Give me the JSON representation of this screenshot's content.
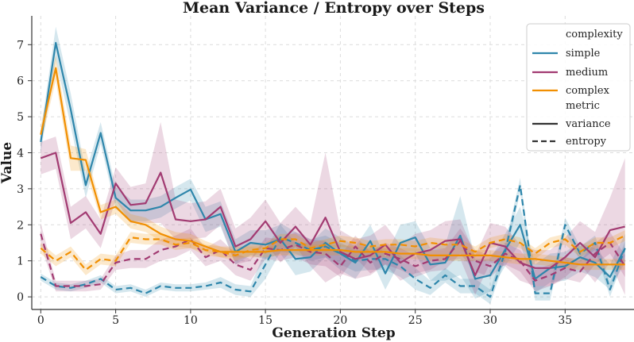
{
  "chart_data": {
    "type": "line",
    "title": "Mean Variance / Entropy over Steps",
    "xlabel": "Generation Step",
    "ylabel": "Value",
    "xlim": [
      -0.6,
      39.6
    ],
    "ylim": [
      -0.35,
      7.8
    ],
    "xticks": [
      0,
      5,
      10,
      15,
      20,
      25,
      30,
      35
    ],
    "yticks": [
      0,
      1,
      2,
      3,
      4,
      5,
      6,
      7
    ],
    "grid": true,
    "legend_position": "top-right",
    "legend": {
      "hue_title": "complexity",
      "style_title": "metric",
      "hue_entries": [
        "simple",
        "medium",
        "complex"
      ],
      "style_entries": [
        "variance",
        "entropy"
      ]
    },
    "x": [
      0,
      1,
      2,
      3,
      4,
      5,
      6,
      7,
      8,
      9,
      10,
      11,
      12,
      13,
      14,
      15,
      16,
      17,
      18,
      19,
      20,
      21,
      22,
      23,
      24,
      25,
      26,
      27,
      28,
      29,
      30,
      31,
      32,
      33,
      34,
      35,
      36,
      37,
      38,
      39
    ],
    "series": [
      {
        "name": "simple",
        "metric": "variance",
        "color": "#2e86ab",
        "style": "solid",
        "values": [
          4.3,
          7.05,
          5.2,
          3.1,
          4.55,
          2.75,
          2.4,
          2.4,
          2.5,
          2.75,
          2.98,
          2.15,
          2.3,
          1.25,
          1.5,
          1.45,
          1.6,
          1.05,
          1.1,
          1.5,
          1.2,
          0.95,
          1.55,
          0.65,
          1.5,
          1.65,
          0.9,
          0.95,
          1.7,
          0.5,
          0.6,
          1.3,
          2.0,
          0.5,
          0.8,
          0.85,
          1.1,
          0.95,
          0.55,
          1.35
        ],
        "band": [
          0.3,
          0.45,
          0.45,
          0.35,
          0.3,
          0.3,
          0.3,
          0.3,
          0.3,
          0.3,
          0.3,
          0.35,
          0.35,
          0.35,
          0.35,
          0.4,
          0.4,
          0.45,
          0.4,
          0.4,
          0.45,
          0.45,
          0.45,
          0.45,
          0.5,
          0.45,
          0.45,
          0.5,
          1.1,
          0.55,
          0.45,
          0.45,
          0.5,
          0.4,
          0.4,
          0.4,
          0.4,
          0.4,
          0.35,
          0.4
        ]
      },
      {
        "name": "simple",
        "metric": "entropy",
        "color": "#2e86ab",
        "style": "dashed",
        "values": [
          0.55,
          0.3,
          0.25,
          0.35,
          0.5,
          0.2,
          0.25,
          0.1,
          0.3,
          0.25,
          0.25,
          0.3,
          0.4,
          0.2,
          0.15,
          0.9,
          1.65,
          1.5,
          1.3,
          1.4,
          1.2,
          1.0,
          1.05,
          1.05,
          0.85,
          0.5,
          0.25,
          0.6,
          0.3,
          0.3,
          0.0,
          1.25,
          3.1,
          0.1,
          0.1,
          2.0,
          1.2,
          1.5,
          0.2,
          1.35
        ],
        "band": [
          0.1,
          0.1,
          0.1,
          0.1,
          0.1,
          0.1,
          0.1,
          0.1,
          0.1,
          0.1,
          0.1,
          0.1,
          0.15,
          0.15,
          0.15,
          0.4,
          0.4,
          0.3,
          0.3,
          0.3,
          0.3,
          0.3,
          0.3,
          0.3,
          0.3,
          0.3,
          0.2,
          0.2,
          0.2,
          0.2,
          0.2,
          0.2,
          0.2,
          0.2,
          0.2,
          0.2,
          0.2,
          0.2,
          0.2,
          0.2
        ]
      },
      {
        "name": "medium",
        "metric": "variance",
        "color": "#a23b72",
        "style": "solid",
        "values": [
          3.85,
          4.0,
          2.05,
          2.35,
          1.75,
          3.15,
          2.55,
          2.6,
          3.45,
          2.15,
          2.1,
          2.15,
          2.5,
          1.4,
          1.6,
          2.1,
          1.5,
          1.95,
          1.45,
          2.2,
          1.25,
          1.05,
          1.15,
          1.45,
          0.95,
          1.2,
          1.3,
          1.55,
          1.6,
          0.6,
          1.5,
          1.4,
          0.95,
          0.8,
          0.8,
          1.1,
          1.5,
          1.1,
          1.85,
          1.95
        ],
        "band": [
          0.45,
          0.45,
          0.45,
          0.45,
          0.4,
          0.45,
          0.5,
          0.55,
          1.4,
          0.55,
          0.5,
          0.5,
          0.5,
          0.5,
          0.6,
          0.6,
          0.55,
          0.55,
          0.6,
          1.8,
          0.6,
          0.55,
          0.55,
          0.55,
          0.5,
          0.55,
          0.55,
          0.55,
          0.55,
          0.55,
          0.55,
          0.55,
          0.5,
          0.5,
          0.5,
          0.55,
          0.6,
          0.7,
          0.9,
          1.9
        ]
      },
      {
        "name": "medium",
        "metric": "entropy",
        "color": "#a23b72",
        "style": "dashed",
        "values": [
          1.75,
          0.3,
          0.3,
          0.3,
          0.35,
          0.95,
          1.05,
          1.05,
          1.3,
          1.4,
          1.6,
          1.1,
          1.3,
          0.9,
          0.75,
          1.35,
          1.3,
          1.45,
          1.25,
          1.2,
          0.85,
          1.4,
          0.95,
          1.2,
          1.05,
          0.85,
          1.0,
          1.05,
          1.55,
          1.0,
          0.85,
          1.2,
          1.0,
          0.45,
          0.6,
          0.8,
          0.7,
          1.2,
          1.5,
          0.85
        ],
        "band": [
          0.3,
          0.15,
          0.15,
          0.15,
          0.15,
          0.2,
          0.25,
          0.25,
          0.3,
          0.3,
          0.3,
          0.25,
          0.3,
          0.3,
          0.3,
          0.3,
          0.3,
          0.35,
          0.35,
          0.35,
          0.3,
          0.3,
          0.3,
          0.3,
          0.3,
          0.3,
          0.3,
          0.3,
          0.35,
          0.3,
          0.3,
          0.3,
          0.3,
          0.3,
          0.3,
          0.3,
          0.3,
          0.3,
          0.3,
          0.3
        ]
      },
      {
        "name": "complex",
        "metric": "variance",
        "color": "#f18f01",
        "style": "solid",
        "values": [
          4.5,
          6.35,
          3.85,
          3.8,
          2.35,
          2.5,
          2.1,
          2.0,
          1.75,
          1.6,
          1.55,
          1.4,
          1.25,
          1.25,
          1.25,
          1.25,
          1.3,
          1.3,
          1.3,
          1.3,
          1.3,
          1.25,
          1.25,
          1.25,
          1.2,
          1.2,
          1.15,
          1.15,
          1.15,
          1.15,
          1.15,
          1.1,
          1.05,
          1.05,
          1.0,
          0.95,
          0.9,
          0.9,
          0.9,
          0.9
        ],
        "band": [
          0.25,
          0.35,
          0.35,
          0.3,
          0.2,
          0.2,
          0.2,
          0.2,
          0.2,
          0.2,
          0.2,
          0.15,
          0.15,
          0.15,
          0.15,
          0.15,
          0.15,
          0.15,
          0.15,
          0.15,
          0.15,
          0.15,
          0.15,
          0.15,
          0.15,
          0.15,
          0.15,
          0.15,
          0.15,
          0.15,
          0.15,
          0.15,
          0.15,
          0.15,
          0.15,
          0.15,
          0.15,
          0.15,
          0.15,
          0.15
        ]
      },
      {
        "name": "complex",
        "metric": "entropy",
        "color": "#f18f01",
        "style": "dashed",
        "values": [
          1.35,
          1.0,
          1.25,
          0.75,
          1.05,
          1.0,
          1.65,
          1.6,
          1.6,
          1.45,
          1.5,
          1.3,
          1.25,
          1.15,
          1.3,
          1.35,
          1.6,
          1.6,
          1.35,
          1.45,
          1.55,
          1.5,
          1.4,
          1.45,
          1.45,
          1.4,
          1.5,
          1.45,
          1.45,
          1.25,
          1.5,
          1.6,
          1.5,
          1.2,
          1.5,
          1.6,
          1.25,
          1.5,
          1.5,
          1.7
        ],
        "band": [
          0.15,
          0.15,
          0.15,
          0.15,
          0.15,
          0.15,
          0.15,
          0.15,
          0.15,
          0.15,
          0.15,
          0.15,
          0.15,
          0.15,
          0.15,
          0.15,
          0.15,
          0.15,
          0.15,
          0.15,
          0.15,
          0.15,
          0.15,
          0.15,
          0.15,
          0.15,
          0.15,
          0.15,
          0.15,
          0.15,
          0.15,
          0.15,
          0.15,
          0.15,
          0.15,
          0.15,
          0.15,
          0.15,
          0.15,
          0.15
        ]
      }
    ]
  }
}
